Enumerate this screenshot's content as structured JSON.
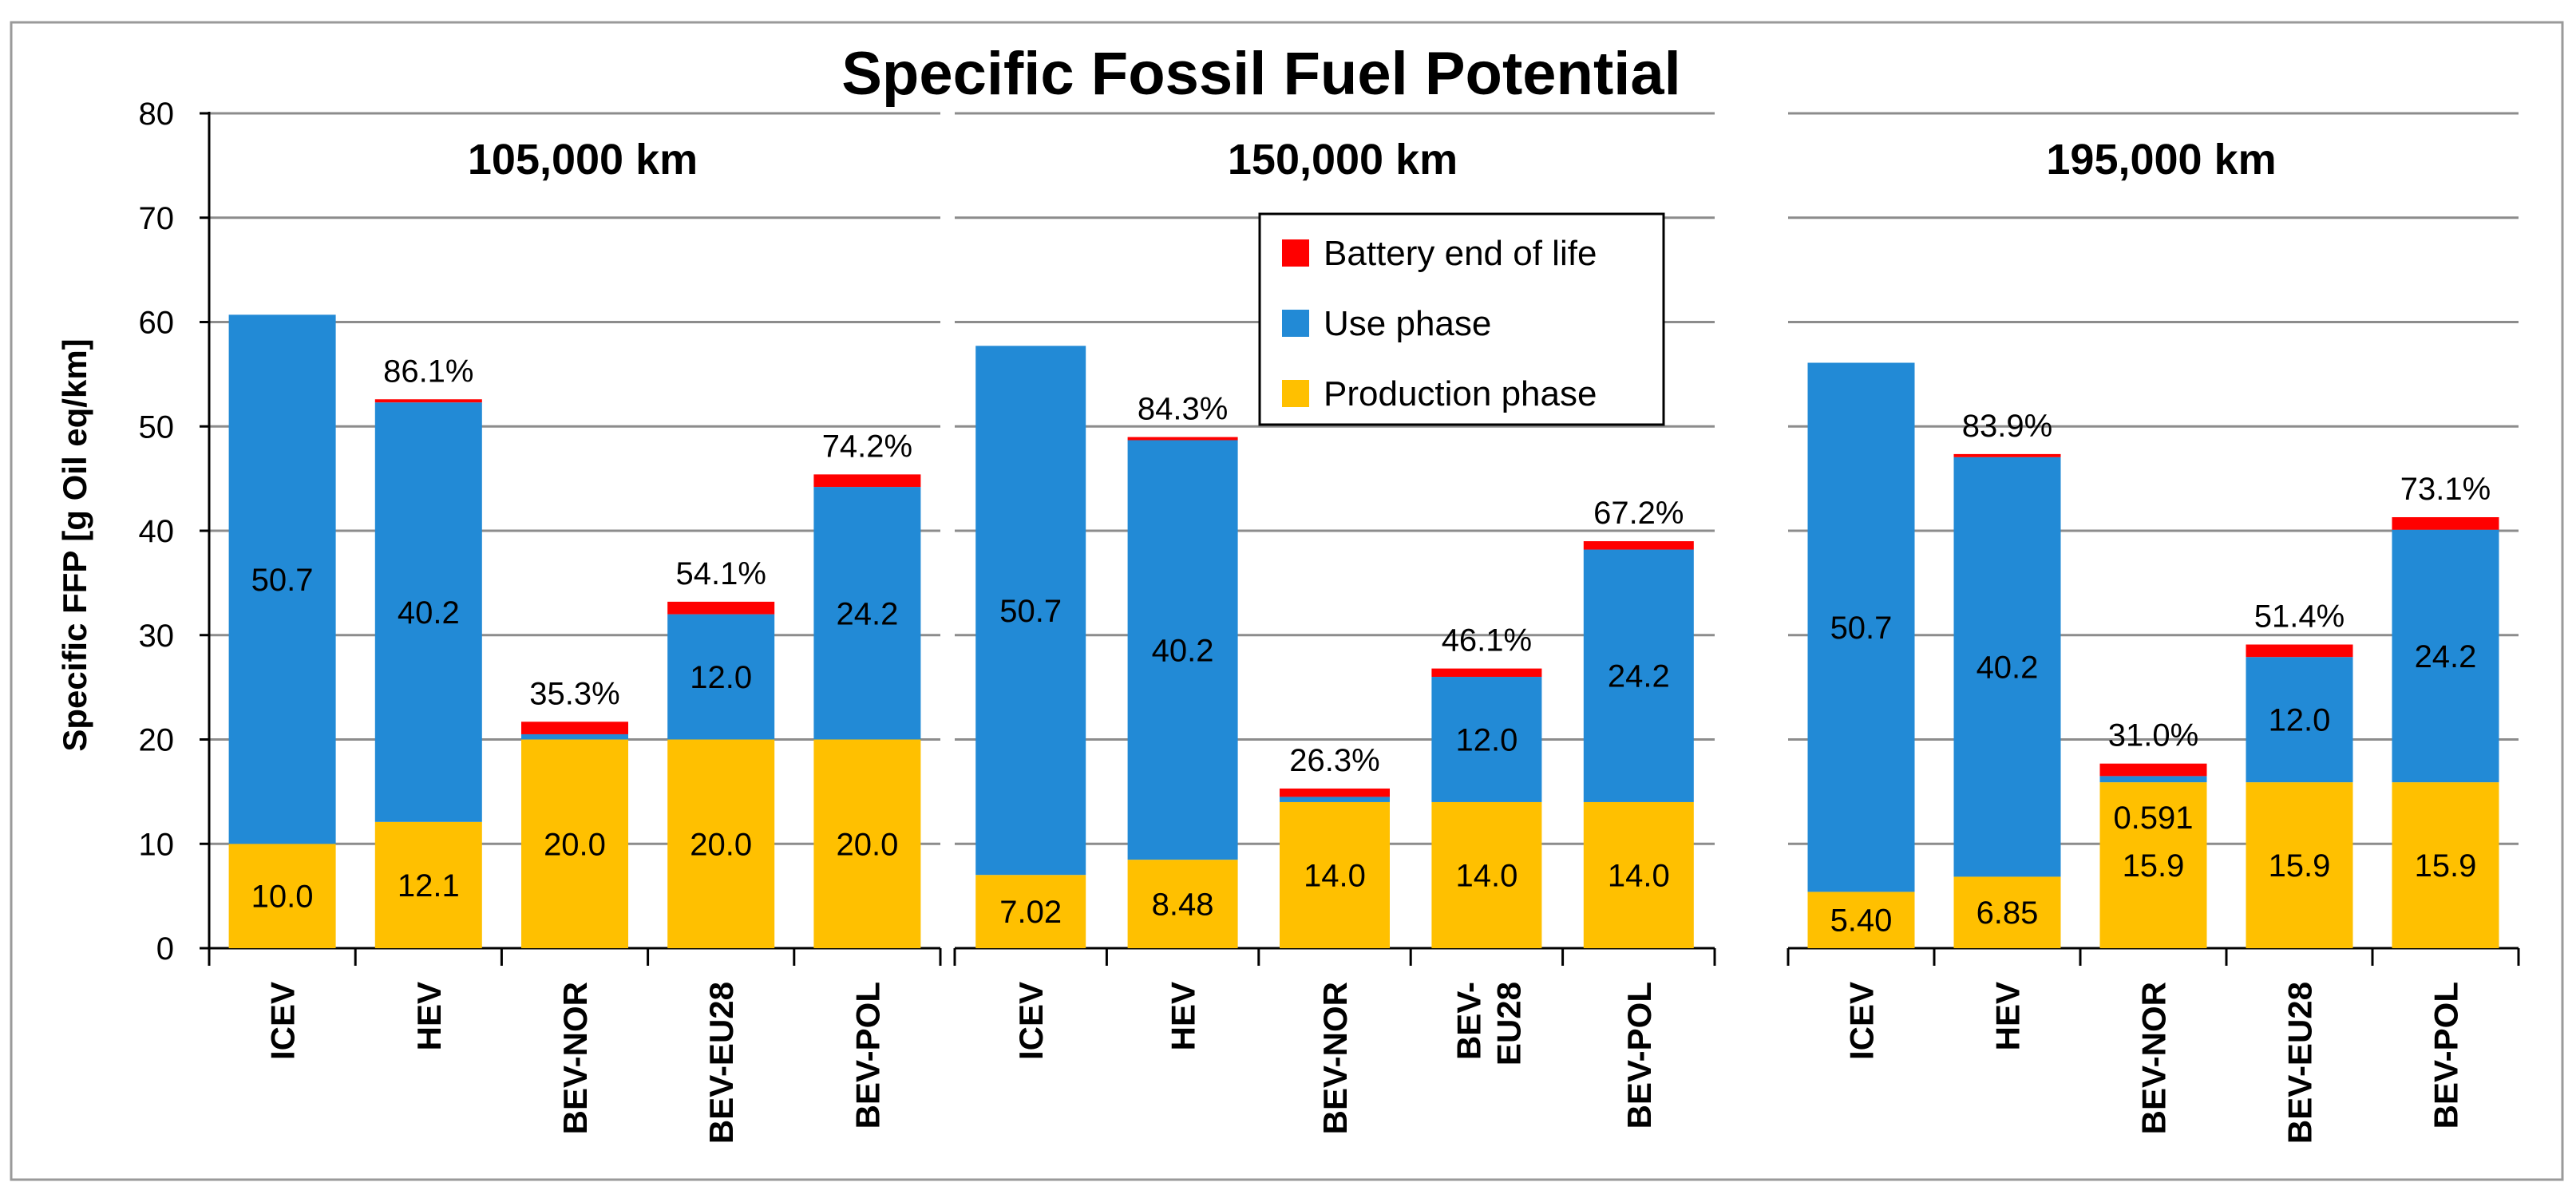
{
  "chart_data": {
    "type": "bar",
    "stacked": true,
    "title": "Specific Fossil Fuel Potential",
    "ylabel": "Specific FFP [g Oil eq/km]",
    "xlabel": "",
    "ylim": [
      0,
      80
    ],
    "yticks": [
      0,
      10,
      20,
      30,
      40,
      50,
      60,
      70,
      80
    ],
    "grid": true,
    "legend_position": "upper-center",
    "legend": [
      {
        "name": "Battery end of life",
        "color": "#ff0000"
      },
      {
        "name": "Use phase",
        "color": "#228ad6"
      },
      {
        "name": "Production phase",
        "color": "#ffc000"
      }
    ],
    "groups": [
      {
        "title": "105,000 km",
        "bars": [
          {
            "category": "ICEV",
            "production": 10.0,
            "production_label": "10.0",
            "use": 50.7,
            "use_label": "50.7",
            "battery": 0,
            "percent": ""
          },
          {
            "category": "HEV",
            "production": 12.1,
            "production_label": "12.1",
            "use": 40.2,
            "use_label": "40.2",
            "battery": 0.3,
            "percent": "86.1%"
          },
          {
            "category": "BEV-NOR",
            "production": 20.0,
            "production_label": "20.0",
            "use": 0.5,
            "use_label": "",
            "battery": 1.2,
            "percent": "35.3%"
          },
          {
            "category": "BEV-EU28",
            "production": 20.0,
            "production_label": "20.0",
            "use": 12.0,
            "use_label": "12.0",
            "battery": 1.2,
            "percent": "54.1%"
          },
          {
            "category": "BEV-POL",
            "production": 20.0,
            "production_label": "20.0",
            "use": 24.2,
            "use_label": "24.2",
            "battery": 1.2,
            "percent": "74.2%"
          }
        ]
      },
      {
        "title": "150,000 km",
        "bars": [
          {
            "category": "ICEV",
            "production": 7.02,
            "production_label": "7.02",
            "use": 50.7,
            "use_label": "50.7",
            "battery": 0,
            "percent": ""
          },
          {
            "category": "HEV",
            "production": 8.48,
            "production_label": "8.48",
            "use": 40.2,
            "use_label": "40.2",
            "battery": 0.3,
            "percent": "84.3%"
          },
          {
            "category": "BEV-NOR",
            "production": 14.0,
            "production_label": "14.0",
            "use": 0.5,
            "use_label": "",
            "battery": 0.8,
            "percent": "26.3%"
          },
          {
            "category": "BEV-EU28",
            "production": 14.0,
            "production_label": "14.0",
            "use": 12.0,
            "use_label": "12.0",
            "battery": 0.8,
            "percent": "46.1%"
          },
          {
            "category": "BEV-POL",
            "production": 14.0,
            "production_label": "14.0",
            "use": 24.2,
            "use_label": "24.2",
            "battery": 0.8,
            "percent": "67.2%"
          }
        ]
      },
      {
        "title": "195,000 km",
        "bars": [
          {
            "category": "ICEV",
            "production": 5.4,
            "production_label": "5.40",
            "use": 50.7,
            "use_label": "50.7",
            "battery": 0,
            "percent": ""
          },
          {
            "category": "HEV",
            "production": 6.85,
            "production_label": "6.85",
            "use": 40.2,
            "use_label": "40.2",
            "battery": 0.3,
            "percent": "83.9%"
          },
          {
            "category": "BEV-NOR",
            "production": 15.9,
            "production_label": "15.9",
            "use": 0.591,
            "use_label": "0.591",
            "battery": 1.2,
            "percent": "31.0%"
          },
          {
            "category": "BEV-EU28",
            "production": 15.9,
            "production_label": "15.9",
            "use": 12.0,
            "use_label": "12.0",
            "battery": 1.2,
            "percent": "51.4%"
          },
          {
            "category": "BEV-POL",
            "production": 15.9,
            "production_label": "15.9",
            "use": 24.2,
            "use_label": "24.2",
            "battery": 1.2,
            "percent": "73.1%"
          }
        ]
      }
    ]
  }
}
